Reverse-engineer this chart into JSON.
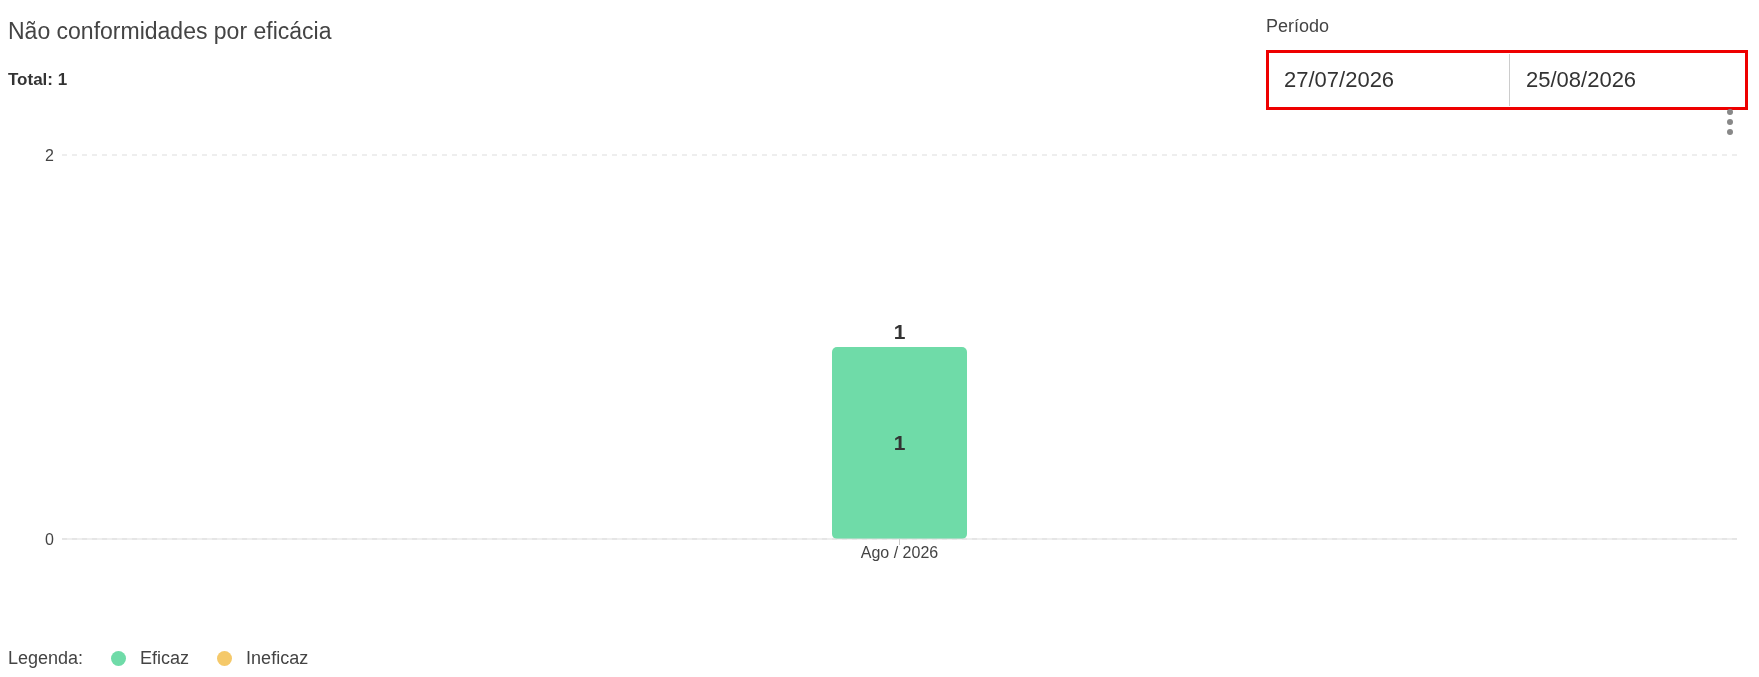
{
  "chart_data": {
    "type": "bar",
    "title": "Não conformidades por eficácia",
    "subtitle": "Total: 1",
    "annotations": [
      "Período",
      "27/07/2026",
      "25/08/2026"
    ],
    "categories": [
      "Ago / 2026"
    ],
    "stacked": true,
    "series": [
      {
        "name": "Eficaz",
        "color": "#6fdba8",
        "values": [
          1
        ],
        "value_labels": [
          "1"
        ]
      },
      {
        "name": "Ineficaz",
        "color": "#f5c96a",
        "values": [
          0
        ],
        "value_labels": [
          null
        ]
      }
    ],
    "totals": [
      "1"
    ],
    "ylim": [
      0,
      2
    ],
    "yticks": [
      0,
      2
    ],
    "grid": "y",
    "legend": "bottom left",
    "legend_title": "Legenda:"
  }
}
